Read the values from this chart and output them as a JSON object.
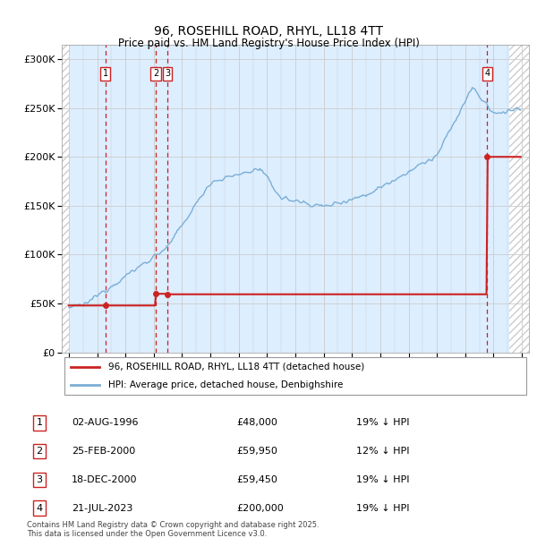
{
  "title_line1": "96, ROSEHILL ROAD, RHYL, LL18 4TT",
  "title_line2": "Price paid vs. HM Land Registry's House Price Index (HPI)",
  "ytick_values": [
    0,
    50000,
    100000,
    150000,
    200000,
    250000,
    300000
  ],
  "ylim": [
    0,
    315000
  ],
  "xlim_start": 1993.5,
  "xlim_end": 2026.5,
  "hpi_color": "#7aaed6",
  "price_color": "#cc2222",
  "legend_label1": "96, ROSEHILL ROAD, RHYL, LL18 4TT (detached house)",
  "legend_label2": "HPI: Average price, detached house, Denbighshire",
  "transactions": [
    {
      "num": 1,
      "date": "02-AUG-1996",
      "price": 48000,
      "pct": "19%",
      "year": 1996.58
    },
    {
      "num": 2,
      "date": "25-FEB-2000",
      "price": 59950,
      "pct": "12%",
      "year": 2000.14
    },
    {
      "num": 3,
      "date": "18-DEC-2000",
      "price": 59450,
      "pct": "19%",
      "year": 2000.96
    },
    {
      "num": 4,
      "date": "21-JUL-2023",
      "price": 200000,
      "pct": "19%",
      "year": 2023.55
    }
  ],
  "footer": "Contains HM Land Registry data © Crown copyright and database right 2025.\nThis data is licensed under the Open Government Licence v3.0.",
  "grid_color": "#cccccc",
  "plot_bg": "#ddeeff",
  "hatch_color": "#cccccc"
}
